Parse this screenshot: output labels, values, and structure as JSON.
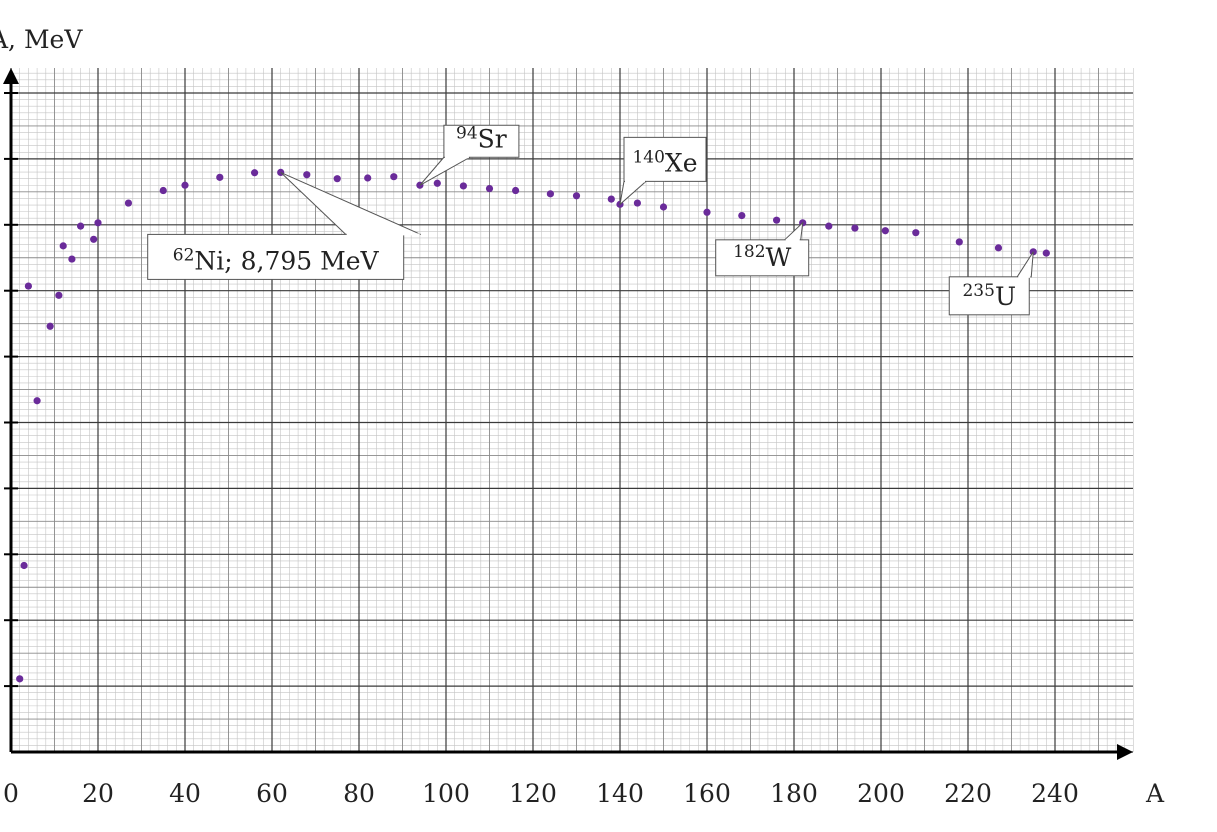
{
  "chart_data": {
    "type": "scatter",
    "xlabel": "A",
    "ylabel": "A, MeV",
    "xlim": [
      0,
      258
    ],
    "ylim": [
      0,
      10.4
    ],
    "x_ticks": [
      "0",
      "20",
      "40",
      "60",
      "80",
      "100",
      "120",
      "140",
      "160",
      "180",
      "200",
      "220",
      "240"
    ],
    "grid": true,
    "point_color": "#6a2b9a",
    "points": [
      {
        "x": 2,
        "y": 1.11
      },
      {
        "x": 3,
        "y": 2.83
      },
      {
        "x": 4,
        "y": 7.07
      },
      {
        "x": 6,
        "y": 5.33
      },
      {
        "x": 9,
        "y": 6.46
      },
      {
        "x": 11,
        "y": 6.93
      },
      {
        "x": 12,
        "y": 7.68
      },
      {
        "x": 14,
        "y": 7.48
      },
      {
        "x": 16,
        "y": 7.98
      },
      {
        "x": 19,
        "y": 7.78
      },
      {
        "x": 20,
        "y": 8.03
      },
      {
        "x": 27,
        "y": 8.33
      },
      {
        "x": 35,
        "y": 8.52
      },
      {
        "x": 40,
        "y": 8.6
      },
      {
        "x": 48,
        "y": 8.72
      },
      {
        "x": 56,
        "y": 8.79
      },
      {
        "x": 62,
        "y": 8.795
      },
      {
        "x": 68,
        "y": 8.76
      },
      {
        "x": 75,
        "y": 8.7
      },
      {
        "x": 82,
        "y": 8.71
      },
      {
        "x": 88,
        "y": 8.73
      },
      {
        "x": 94,
        "y": 8.6
      },
      {
        "x": 98,
        "y": 8.63
      },
      {
        "x": 104,
        "y": 8.59
      },
      {
        "x": 110,
        "y": 8.55
      },
      {
        "x": 116,
        "y": 8.52
      },
      {
        "x": 124,
        "y": 8.47
      },
      {
        "x": 130,
        "y": 8.44
      },
      {
        "x": 138,
        "y": 8.39
      },
      {
        "x": 140,
        "y": 8.31
      },
      {
        "x": 144,
        "y": 8.33
      },
      {
        "x": 150,
        "y": 8.27
      },
      {
        "x": 160,
        "y": 8.19
      },
      {
        "x": 168,
        "y": 8.14
      },
      {
        "x": 176,
        "y": 8.07
      },
      {
        "x": 182,
        "y": 8.03
      },
      {
        "x": 188,
        "y": 7.98
      },
      {
        "x": 194,
        "y": 7.95
      },
      {
        "x": 201,
        "y": 7.91
      },
      {
        "x": 208,
        "y": 7.88
      },
      {
        "x": 218,
        "y": 7.74
      },
      {
        "x": 227,
        "y": 7.65
      },
      {
        "x": 235,
        "y": 7.59
      },
      {
        "x": 238,
        "y": 7.57
      }
    ],
    "annotations": [
      {
        "mass": "62",
        "symbol": "Ni; 8,795 MeV",
        "x": 62,
        "y": 8.795
      },
      {
        "mass": "94",
        "symbol": "Sr",
        "x": 94,
        "y": 8.6
      },
      {
        "mass": "140",
        "symbol": "Xe",
        "x": 140,
        "y": 8.31
      },
      {
        "mass": "182",
        "symbol": "W",
        "x": 182,
        "y": 8.03
      },
      {
        "mass": "235",
        "symbol": "U",
        "x": 235,
        "y": 7.59
      }
    ]
  }
}
